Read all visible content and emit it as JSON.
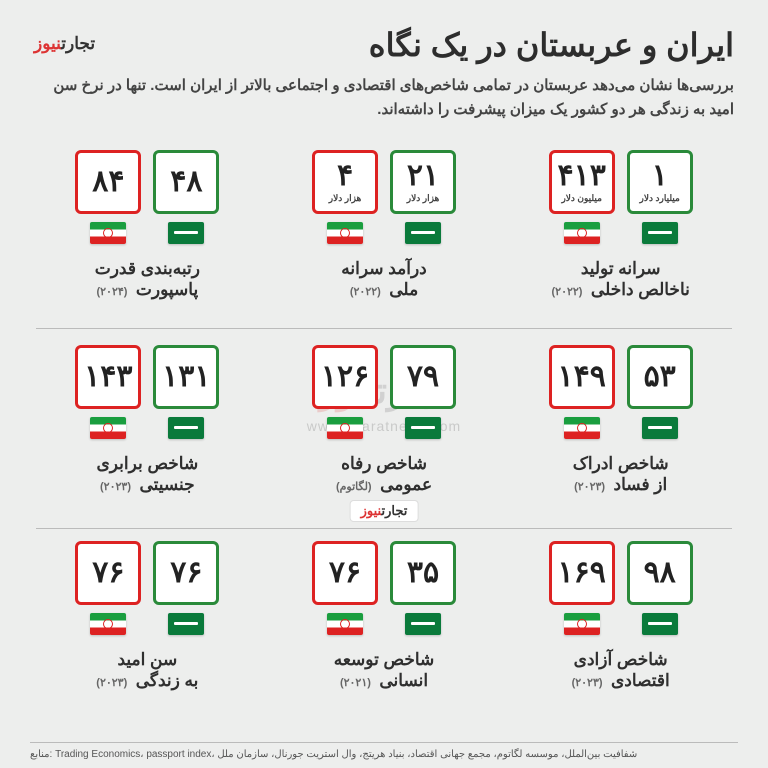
{
  "title": "ایران و عربستان در یک نگاه",
  "subtitle": "بررسی‌ها نشان می‌دهد عربستان در تمامی شاخص‌های اقتصادی و اجتماعی بالاتر از ایران است. تنها در نرخ سن امید به زندگی هر دو کشور یک میزان پیشرفت را داشته‌اند.",
  "brand": {
    "part1": "تجارت",
    "part2": "نیوز",
    "url": "www.tejaratnews.com"
  },
  "colors": {
    "saudi": "#2a8a3a",
    "iran": "#d22",
    "bg": "#edeeed",
    "text": "#2d2d2d"
  },
  "sources": "منابع: Trading Economics، passport index، شفافیت بین‌الملل، موسسه لگاتوم، مجمع جهانی اقتصاد، بنیاد هریتج، وال استریت جورنال، سازمان ملل",
  "cells": [
    {
      "saudi": {
        "v": "۱",
        "u": "میلیارد دلار"
      },
      "iran": {
        "v": "۴۱۳",
        "u": "میلیون دلار"
      },
      "l1": "سرانه تولید",
      "l2": "ناخالص داخلی",
      "yr": "(۲۰۲۲)"
    },
    {
      "saudi": {
        "v": "۲۱",
        "u": "هزار دلار"
      },
      "iran": {
        "v": "۴",
        "u": "هزار دلار"
      },
      "l1": "درآمد سرانه",
      "l2": "ملی",
      "yr": "(۲۰۲۲)"
    },
    {
      "saudi": {
        "v": "۴۸",
        "u": ""
      },
      "iran": {
        "v": "۸۴",
        "u": ""
      },
      "l1": "رتبه‌بندی قدرت",
      "l2": "پاسپورت",
      "yr": "(۲۰۲۴)"
    },
    {
      "saudi": {
        "v": "۵۳",
        "u": ""
      },
      "iran": {
        "v": "۱۴۹",
        "u": ""
      },
      "l1": "شاخص ادراک",
      "l2": "از فساد",
      "yr": "(۲۰۲۳)"
    },
    {
      "saudi": {
        "v": "۷۹",
        "u": ""
      },
      "iran": {
        "v": "۱۲۶",
        "u": ""
      },
      "l1": "شاخص رفاه",
      "l2": "عمومی",
      "yr": "(لگاتوم)"
    },
    {
      "saudi": {
        "v": "۱۳۱",
        "u": ""
      },
      "iran": {
        "v": "۱۴۳",
        "u": ""
      },
      "l1": "شاخص برابری",
      "l2": "جنسیتی",
      "yr": "(۲۰۲۳)"
    },
    {
      "saudi": {
        "v": "۹۸",
        "u": ""
      },
      "iran": {
        "v": "۱۶۹",
        "u": ""
      },
      "l1": "شاخص آزادی",
      "l2": "اقتصادی",
      "yr": "(۲۰۲۳)"
    },
    {
      "saudi": {
        "v": "۳۵",
        "u": ""
      },
      "iran": {
        "v": "۷۶",
        "u": ""
      },
      "l1": "شاخص توسعه",
      "l2": "انسانی",
      "yr": "(۲۰۲۱)"
    },
    {
      "saudi": {
        "v": "۷۶",
        "u": ""
      },
      "iran": {
        "v": "۷۶",
        "u": ""
      },
      "l1": "سن امید",
      "l2": "به زندگی",
      "yr": "(۲۰۲۳)"
    }
  ]
}
